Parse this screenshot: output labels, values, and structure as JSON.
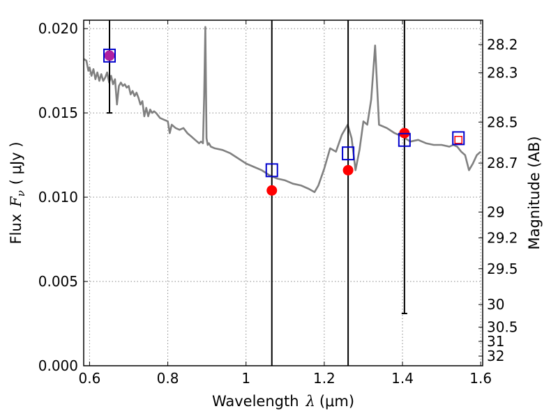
{
  "chart_data": {
    "type": "line",
    "xlabel": "Wavelength",
    "xlabel_symbol": "λ",
    "xlabel_unit": "(μm)",
    "ylabel": "Flux",
    "ylabel_symbol": "F",
    "ylabel_subscript": "ν",
    "ylabel_unit": "( μJy )",
    "ylabel_right": "Magnitude (AB)",
    "xlim": [
      0.585,
      1.605
    ],
    "ylim": [
      0.0,
      0.0205
    ],
    "grid": true,
    "x_ticks": [
      {
        "value": 0.6,
        "label": "0.6"
      },
      {
        "value": 0.8,
        "label": "0.8"
      },
      {
        "value": 1.0,
        "label": "1"
      },
      {
        "value": 1.2,
        "label": "1.2"
      },
      {
        "value": 1.4,
        "label": "1.4"
      },
      {
        "value": 1.6,
        "label": "1.6"
      }
    ],
    "y_ticks": [
      {
        "value": 0.0,
        "label": "0.000"
      },
      {
        "value": 0.005,
        "label": "0.005"
      },
      {
        "value": 0.01,
        "label": "0.010"
      },
      {
        "value": 0.015,
        "label": "0.015"
      },
      {
        "value": 0.02,
        "label": "0.020"
      }
    ],
    "mag_ticks": [
      {
        "value": 28.2,
        "label": "28.2"
      },
      {
        "value": 28.3,
        "label": "28.3"
      },
      {
        "value": 28.5,
        "label": "28.5"
      },
      {
        "value": 28.7,
        "label": "28.7"
      },
      {
        "value": 29,
        "label": "29"
      },
      {
        "value": 29.2,
        "label": "29.2"
      },
      {
        "value": 29.5,
        "label": "29.5"
      },
      {
        "value": 30,
        "label": "30"
      },
      {
        "value": 30.5,
        "label": "30.5"
      },
      {
        "value": 31,
        "label": "31"
      },
      {
        "value": 32,
        "label": "32"
      }
    ],
    "colors": {
      "spectrum": "#808080",
      "observed": "#ff0000",
      "model": "#0000cc",
      "errorbar": "#000000",
      "grid": "#888888"
    },
    "series": [
      {
        "kind": "spectrum",
        "x": [
          0.585,
          0.592,
          0.597,
          0.6,
          0.605,
          0.61,
          0.615,
          0.62,
          0.625,
          0.63,
          0.635,
          0.64,
          0.645,
          0.65,
          0.655,
          0.66,
          0.665,
          0.67,
          0.675,
          0.68,
          0.685,
          0.69,
          0.695,
          0.7,
          0.705,
          0.71,
          0.715,
          0.72,
          0.725,
          0.73,
          0.735,
          0.74,
          0.745,
          0.75,
          0.755,
          0.76,
          0.765,
          0.77,
          0.78,
          0.79,
          0.8,
          0.805,
          0.81,
          0.82,
          0.83,
          0.84,
          0.85,
          0.86,
          0.87,
          0.88,
          0.885,
          0.89,
          0.893,
          0.896,
          0.899,
          0.902,
          0.905,
          0.91,
          0.92,
          0.94,
          0.96,
          0.98,
          1.0,
          1.02,
          1.04,
          1.06,
          1.08,
          1.1,
          1.12,
          1.14,
          1.16,
          1.175,
          1.185,
          1.2,
          1.215,
          1.23,
          1.245,
          1.26,
          1.27,
          1.28,
          1.29,
          1.3,
          1.31,
          1.32,
          1.33,
          1.34,
          1.36,
          1.38,
          1.4,
          1.42,
          1.44,
          1.46,
          1.48,
          1.5,
          1.52,
          1.53,
          1.54,
          1.55,
          1.56,
          1.57,
          1.58,
          1.59,
          1.6
        ],
        "y": [
          0.0182,
          0.0181,
          0.0175,
          0.0177,
          0.0172,
          0.0176,
          0.017,
          0.0174,
          0.0169,
          0.0173,
          0.0169,
          0.0171,
          0.0174,
          0.0168,
          0.0172,
          0.0167,
          0.017,
          0.0155,
          0.0166,
          0.0168,
          0.0166,
          0.0167,
          0.0165,
          0.0166,
          0.0161,
          0.0163,
          0.016,
          0.0162,
          0.0159,
          0.0155,
          0.0157,
          0.0148,
          0.0153,
          0.0148,
          0.0152,
          0.015,
          0.0151,
          0.015,
          0.0147,
          0.0146,
          0.0145,
          0.0138,
          0.0143,
          0.0141,
          0.014,
          0.0141,
          0.0138,
          0.0136,
          0.0134,
          0.0132,
          0.0133,
          0.0132,
          0.016,
          0.0201,
          0.0135,
          0.0131,
          0.0132,
          0.013,
          0.0129,
          0.0128,
          0.0126,
          0.0123,
          0.012,
          0.0118,
          0.0116,
          0.0113,
          0.0111,
          0.011,
          0.0108,
          0.0107,
          0.0105,
          0.0103,
          0.0107,
          0.0117,
          0.0129,
          0.0127,
          0.0137,
          0.0143,
          0.0135,
          0.0116,
          0.0128,
          0.0145,
          0.0143,
          0.0158,
          0.019,
          0.0143,
          0.0141,
          0.0138,
          0.0136,
          0.0133,
          0.0134,
          0.0132,
          0.0131,
          0.0131,
          0.013,
          0.0131,
          0.013,
          0.0127,
          0.0125,
          0.0116,
          0.012,
          0.0125,
          0.0127
        ]
      },
      {
        "kind": "observed",
        "x": [
          0.651,
          1.066,
          1.261,
          1.405,
          1.543
        ],
        "y": [
          0.0184,
          0.0104,
          0.0116,
          0.0138,
          0.0134
        ],
        "hollow": [
          false,
          false,
          false,
          false,
          true
        ]
      },
      {
        "kind": "model",
        "x": [
          0.651,
          1.066,
          1.261,
          1.405,
          1.543
        ],
        "y": [
          0.0184,
          0.0116,
          0.0126,
          0.0134,
          0.0135
        ]
      }
    ],
    "error_bars": [
      {
        "x": 0.651,
        "low": 0.015,
        "high": 0.0205
      },
      {
        "x": 1.066,
        "low": 0.0,
        "high": 0.0205
      },
      {
        "x": 1.261,
        "low": 0.0,
        "high": 0.0205
      },
      {
        "x": 1.405,
        "low": 0.0031,
        "high": 0.0205
      }
    ]
  }
}
